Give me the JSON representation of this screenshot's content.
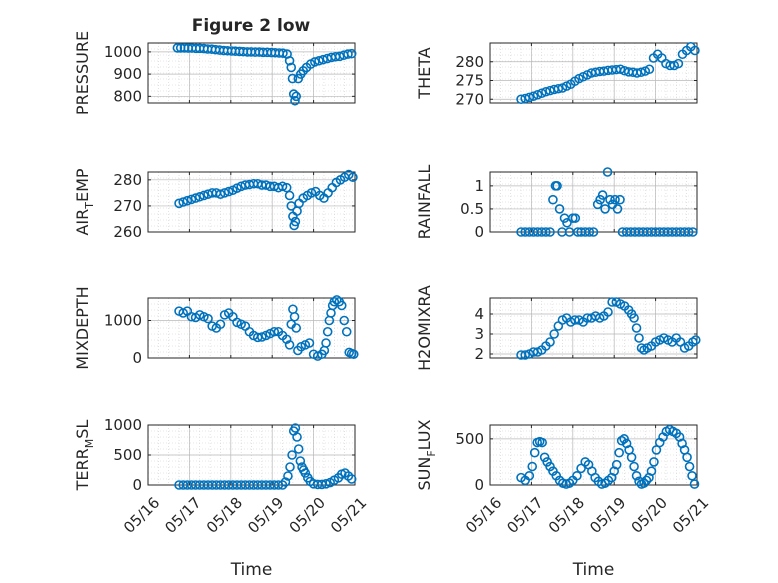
{
  "figure": {
    "title": "Figure 2 low",
    "marker_color": "#0072BD",
    "shared_x_ticks": [
      "05/16",
      "05/17",
      "05/18",
      "05/19",
      "05/20",
      "05/21"
    ]
  },
  "chart_data": [
    {
      "type": "scatter",
      "ylabel": "PRESSURE",
      "xlabel": "",
      "xlim": [
        0,
        5
      ],
      "ylim": [
        770,
        1040
      ],
      "yticks": [
        800,
        900,
        1000
      ],
      "x": [
        0.71,
        0.79,
        0.88,
        0.97,
        1.06,
        1.16,
        1.25,
        1.35,
        1.44,
        1.54,
        1.63,
        1.73,
        1.83,
        1.92,
        2.02,
        2.11,
        2.21,
        2.3,
        2.4,
        2.49,
        2.59,
        2.69,
        2.78,
        2.88,
        2.98,
        3.07,
        3.17,
        3.26,
        3.36,
        3.42,
        3.46,
        3.49,
        3.52,
        3.55,
        3.58,
        3.63,
        3.69,
        3.75,
        3.83,
        3.93,
        4.03,
        4.13,
        4.23,
        4.33,
        4.43,
        4.53,
        4.63,
        4.73,
        4.83,
        4.92
      ],
      "y": [
        1018,
        1018,
        1018,
        1017,
        1017,
        1016,
        1016,
        1015,
        1013,
        1012,
        1010,
        1008,
        1006,
        1005,
        1004,
        1003,
        1002,
        1001,
        1000,
        1000,
        999,
        999,
        998,
        998,
        997,
        996,
        995,
        994,
        990,
        960,
        930,
        880,
        810,
        780,
        800,
        880,
        900,
        915,
        930,
        945,
        955,
        960,
        965,
        970,
        975,
        978,
        980,
        985,
        990,
        992
      ]
    },
    {
      "type": "scatter",
      "ylabel": "THETA",
      "xlabel": "",
      "xlim": [
        0,
        5
      ],
      "ylim": [
        269,
        285
      ],
      "yticks": [
        270,
        275,
        280
      ],
      "x": [
        0.75,
        0.85,
        0.95,
        1.05,
        1.15,
        1.25,
        1.35,
        1.45,
        1.55,
        1.65,
        1.75,
        1.85,
        1.95,
        2.05,
        2.15,
        2.25,
        2.35,
        2.45,
        2.55,
        2.65,
        2.75,
        2.85,
        2.95,
        3.05,
        3.15,
        3.25,
        3.35,
        3.45,
        3.55,
        3.65,
        3.75,
        3.85,
        3.95,
        4.05,
        4.15,
        4.25,
        4.35,
        4.45,
        4.55,
        4.65,
        4.75,
        4.85,
        4.95
      ],
      "y": [
        270,
        270.2,
        270.5,
        270.8,
        271.2,
        271.6,
        272,
        272.3,
        272.6,
        272.8,
        273,
        273.5,
        274,
        274.8,
        275.5,
        276,
        276.5,
        277,
        277.2,
        277.4,
        277.5,
        277.7,
        277.8,
        277.9,
        278,
        277.6,
        277.3,
        277.2,
        277,
        277.2,
        277.5,
        278,
        281,
        282,
        281,
        279.5,
        279,
        279,
        279.5,
        282,
        283,
        284,
        283
      ]
    },
    {
      "type": "scatter",
      "ylabel": "AIR_TEMP",
      "xlabel": "",
      "xlim": [
        0,
        5
      ],
      "ylim": [
        260,
        283
      ],
      "yticks": [
        260,
        270,
        280
      ],
      "x": [
        0.75,
        0.85,
        0.95,
        1.05,
        1.15,
        1.25,
        1.35,
        1.45,
        1.55,
        1.65,
        1.75,
        1.85,
        1.95,
        2.05,
        2.15,
        2.25,
        2.35,
        2.45,
        2.55,
        2.65,
        2.75,
        2.85,
        2.95,
        3.05,
        3.15,
        3.25,
        3.35,
        3.42,
        3.46,
        3.5,
        3.53,
        3.56,
        3.6,
        3.65,
        3.75,
        3.85,
        3.95,
        4.05,
        4.15,
        4.25,
        4.35,
        4.45,
        4.55,
        4.65,
        4.75,
        4.85,
        4.95
      ],
      "y": [
        271,
        271.5,
        272,
        272.5,
        273,
        273.5,
        274,
        274.5,
        275,
        275,
        274.5,
        275,
        275.5,
        276,
        276.8,
        277.5,
        278,
        278.2,
        278.5,
        278.5,
        278,
        278,
        277.5,
        277.5,
        277,
        277.5,
        277,
        274,
        270,
        266,
        262.5,
        264,
        268,
        271,
        273,
        274,
        275,
        275.5,
        274,
        273,
        275,
        277,
        279,
        280,
        281,
        282,
        281
      ]
    },
    {
      "type": "scatter",
      "ylabel": "RAINFALL",
      "xlabel": "",
      "xlim": [
        0,
        5
      ],
      "ylim": [
        0,
        1.3
      ],
      "yticks": [
        0,
        0.5,
        1
      ],
      "x": [
        0.75,
        0.85,
        0.95,
        1.05,
        1.15,
        1.25,
        1.35,
        1.45,
        1.52,
        1.58,
        1.62,
        1.68,
        1.74,
        1.8,
        1.86,
        1.92,
        2.0,
        2.06,
        2.12,
        2.2,
        2.3,
        2.4,
        2.5,
        2.6,
        2.66,
        2.72,
        2.78,
        2.84,
        2.9,
        2.96,
        3.02,
        3.08,
        3.14,
        3.2,
        3.3,
        3.4,
        3.5,
        3.6,
        3.7,
        3.8,
        3.9,
        4.0,
        4.1,
        4.2,
        4.3,
        4.4,
        4.5,
        4.6,
        4.7,
        4.8,
        4.9
      ],
      "y": [
        0,
        0,
        0,
        0,
        0,
        0,
        0,
        0,
        0.7,
        1.0,
        1.0,
        0.5,
        0.0,
        0.3,
        0.2,
        0.0,
        0.3,
        0.3,
        0.0,
        0,
        0,
        0,
        0,
        0.6,
        0.7,
        0.8,
        0.5,
        1.3,
        0.7,
        0.6,
        0.7,
        0.5,
        0.7,
        0.0,
        0,
        0,
        0,
        0,
        0,
        0,
        0,
        0,
        0,
        0,
        0,
        0,
        0,
        0,
        0,
        0,
        0
      ]
    },
    {
      "type": "scatter",
      "ylabel": "MIXDEPTH",
      "xlabel": "",
      "xlim": [
        0,
        5
      ],
      "ylim": [
        0,
        1600
      ],
      "yticks": [
        0,
        1000
      ],
      "x": [
        0.75,
        0.85,
        0.95,
        1.05,
        1.15,
        1.25,
        1.35,
        1.45,
        1.55,
        1.65,
        1.75,
        1.85,
        1.95,
        2.05,
        2.15,
        2.25,
        2.35,
        2.45,
        2.55,
        2.65,
        2.75,
        2.85,
        2.95,
        3.05,
        3.15,
        3.25,
        3.35,
        3.42,
        3.46,
        3.5,
        3.54,
        3.58,
        3.62,
        3.7,
        3.8,
        3.9,
        4.0,
        4.1,
        4.2,
        4.26,
        4.3,
        4.34,
        4.38,
        4.42,
        4.46,
        4.5,
        4.56,
        4.62,
        4.68,
        4.74,
        4.8,
        4.86,
        4.92,
        4.97
      ],
      "y": [
        1250,
        1200,
        1250,
        1100,
        1080,
        1150,
        1100,
        1050,
        850,
        800,
        900,
        1150,
        1200,
        1100,
        950,
        900,
        850,
        700,
        600,
        550,
        560,
        600,
        650,
        700,
        700,
        600,
        500,
        350,
        900,
        1300,
        1100,
        800,
        200,
        300,
        350,
        400,
        100,
        50,
        100,
        200,
        400,
        700,
        1000,
        1200,
        1400,
        1500,
        1550,
        1500,
        1400,
        1000,
        700,
        150,
        120,
        100
      ]
    },
    {
      "type": "scatter",
      "ylabel": "H2OMIXRA",
      "xlabel": "",
      "xlim": [
        0,
        5
      ],
      "ylim": [
        1.8,
        4.8
      ],
      "yticks": [
        2,
        3,
        4
      ],
      "x": [
        0.75,
        0.85,
        0.95,
        1.05,
        1.15,
        1.25,
        1.35,
        1.45,
        1.55,
        1.65,
        1.75,
        1.85,
        1.95,
        2.05,
        2.15,
        2.25,
        2.35,
        2.45,
        2.55,
        2.65,
        2.75,
        2.85,
        2.95,
        3.05,
        3.15,
        3.25,
        3.35,
        3.42,
        3.48,
        3.54,
        3.6,
        3.66,
        3.72,
        3.8,
        3.9,
        4.0,
        4.1,
        4.2,
        4.3,
        4.4,
        4.5,
        4.6,
        4.7,
        4.8,
        4.9,
        4.97
      ],
      "y": [
        1.95,
        1.95,
        2.0,
        2.1,
        2.1,
        2.2,
        2.4,
        2.6,
        3.0,
        3.4,
        3.7,
        3.8,
        3.6,
        3.7,
        3.7,
        3.6,
        3.8,
        3.8,
        3.9,
        3.8,
        3.9,
        4.1,
        4.6,
        4.6,
        4.5,
        4.4,
        4.2,
        4.0,
        3.8,
        3.3,
        2.8,
        2.3,
        2.2,
        2.3,
        2.4,
        2.6,
        2.7,
        2.8,
        2.7,
        2.6,
        2.8,
        2.6,
        2.3,
        2.4,
        2.6,
        2.7
      ]
    },
    {
      "type": "scatter",
      "ylabel": "TERR_MSL",
      "xlabel": "Time",
      "xlim": [
        0,
        5
      ],
      "ylim": [
        0,
        1000
      ],
      "yticks": [
        0,
        500,
        1000
      ],
      "x": [
        0.75,
        0.85,
        0.95,
        1.05,
        1.15,
        1.25,
        1.35,
        1.45,
        1.55,
        1.65,
        1.75,
        1.85,
        1.95,
        2.05,
        2.15,
        2.25,
        2.35,
        2.45,
        2.55,
        2.65,
        2.75,
        2.85,
        2.95,
        3.05,
        3.15,
        3.25,
        3.32,
        3.38,
        3.43,
        3.48,
        3.52,
        3.56,
        3.6,
        3.64,
        3.68,
        3.72,
        3.76,
        3.8,
        3.86,
        3.92,
        4.0,
        4.1,
        4.2,
        4.3,
        4.4,
        4.5,
        4.6,
        4.68,
        4.76,
        4.84,
        4.92
      ],
      "y": [
        0,
        0,
        0,
        0,
        0,
        0,
        0,
        0,
        0,
        0,
        0,
        0,
        0,
        0,
        0,
        0,
        0,
        0,
        0,
        0,
        0,
        0,
        0,
        0,
        0,
        0,
        50,
        150,
        300,
        500,
        900,
        950,
        800,
        600,
        400,
        300,
        250,
        200,
        120,
        60,
        20,
        10,
        10,
        20,
        40,
        80,
        120,
        180,
        200,
        150,
        100
      ]
    },
    {
      "type": "scatter",
      "ylabel": "SUN_FLUX",
      "xlabel": "Time",
      "xlim": [
        0,
        5
      ],
      "ylim": [
        0,
        650
      ],
      "yticks": [
        0,
        500
      ],
      "x": [
        0.75,
        0.85,
        0.95,
        1.02,
        1.08,
        1.14,
        1.2,
        1.26,
        1.32,
        1.38,
        1.45,
        1.52,
        1.6,
        1.68,
        1.76,
        1.84,
        1.92,
        2.0,
        2.1,
        2.2,
        2.3,
        2.38,
        2.46,
        2.54,
        2.62,
        2.7,
        2.78,
        2.86,
        2.94,
        3.0,
        3.06,
        3.12,
        3.18,
        3.24,
        3.3,
        3.36,
        3.42,
        3.48,
        3.54,
        3.6,
        3.66,
        3.72,
        3.78,
        3.84,
        3.9,
        3.96,
        4.02,
        4.1,
        4.18,
        4.26,
        4.34,
        4.42,
        4.5,
        4.58,
        4.64,
        4.7,
        4.76,
        4.82,
        4.88,
        4.94
      ],
      "y": [
        80,
        50,
        100,
        200,
        350,
        460,
        470,
        460,
        300,
        250,
        200,
        150,
        100,
        50,
        20,
        10,
        20,
        50,
        100,
        180,
        250,
        220,
        150,
        80,
        40,
        10,
        20,
        50,
        80,
        150,
        220,
        350,
        480,
        500,
        450,
        380,
        300,
        200,
        100,
        40,
        10,
        20,
        50,
        80,
        150,
        250,
        380,
        460,
        520,
        580,
        600,
        580,
        560,
        520,
        450,
        380,
        300,
        200,
        100,
        10
      ]
    }
  ]
}
